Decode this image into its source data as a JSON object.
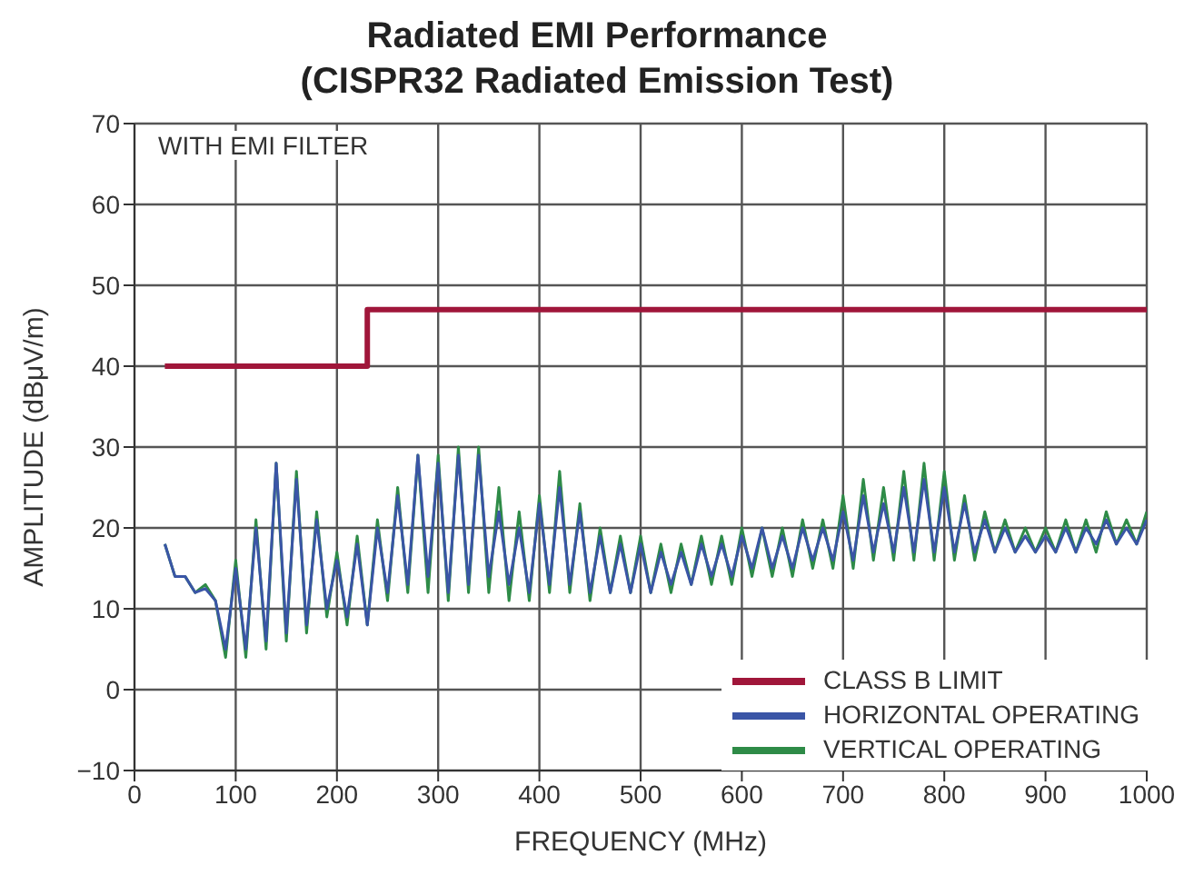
{
  "chart_data": {
    "type": "line",
    "title": "Radiated EMI Performance",
    "subtitle": "(CISPR32 Radiated Emission Test)",
    "xlabel": "FREQUENCY (MHz)",
    "ylabel": "AMPLITUDE (dBμV/m)",
    "annotations": [
      "WITH EMI FILTER"
    ],
    "xlim": [
      0,
      1000
    ],
    "xticks": [
      0,
      100,
      200,
      300,
      400,
      500,
      600,
      700,
      800,
      900,
      1000
    ],
    "ylim": [
      -10,
      70
    ],
    "yticks": [
      -10,
      0,
      10,
      20,
      30,
      40,
      50,
      60,
      70
    ],
    "grid": true,
    "legend": "bottom right",
    "marker": "none",
    "line_style": "solid",
    "series": [
      {
        "name": "CLASS B LIMIT",
        "type": "step",
        "color": "#a0163a",
        "x": [
          30,
          230,
          1000
        ],
        "values": [
          40,
          47,
          47
        ]
      },
      {
        "name": "HORIZONTAL OPERATING",
        "color": "#3a55a6",
        "x": [
          30,
          40,
          50,
          60,
          70,
          80,
          90,
          100,
          110,
          120,
          130,
          140,
          150,
          160,
          170,
          180,
          190,
          200,
          210,
          220,
          230,
          240,
          250,
          260,
          270,
          280,
          290,
          300,
          310,
          320,
          330,
          340,
          350,
          360,
          370,
          380,
          390,
          400,
          410,
          420,
          430,
          440,
          450,
          460,
          470,
          480,
          490,
          500,
          510,
          520,
          530,
          540,
          550,
          560,
          570,
          580,
          590,
          600,
          610,
          620,
          630,
          640,
          650,
          660,
          670,
          680,
          690,
          700,
          710,
          720,
          730,
          740,
          750,
          760,
          770,
          780,
          790,
          800,
          810,
          820,
          830,
          840,
          850,
          860,
          870,
          880,
          890,
          900,
          910,
          920,
          930,
          940,
          950,
          960,
          970,
          980,
          990,
          1000
        ],
        "values": [
          18,
          14,
          14,
          12,
          12.5,
          11,
          5,
          15,
          5,
          20,
          6,
          28,
          7,
          26,
          8,
          21,
          10,
          16,
          9,
          18,
          8,
          20,
          12,
          24,
          13,
          29,
          14,
          28,
          12,
          29,
          13,
          29,
          14,
          22,
          13,
          20,
          12,
          23,
          13,
          25,
          13,
          22,
          12,
          19,
          12,
          18,
          12,
          18,
          12,
          17,
          13,
          17,
          13,
          18,
          14,
          18,
          14,
          19,
          15,
          20,
          15,
          19,
          15,
          20,
          16,
          20,
          16,
          22,
          16,
          24,
          17,
          23,
          17,
          25,
          17,
          26,
          17,
          25,
          17,
          23,
          17,
          21,
          17,
          20,
          17,
          19,
          17,
          19,
          17,
          20,
          17,
          20,
          18,
          21,
          18,
          20,
          18,
          21
        ]
      },
      {
        "name": "VERTICAL OPERATING",
        "color": "#2e8b47",
        "x": [
          30,
          40,
          50,
          60,
          70,
          80,
          90,
          100,
          110,
          120,
          130,
          140,
          150,
          160,
          170,
          180,
          190,
          200,
          210,
          220,
          230,
          240,
          250,
          260,
          270,
          280,
          290,
          300,
          310,
          320,
          330,
          340,
          350,
          360,
          370,
          380,
          390,
          400,
          410,
          420,
          430,
          440,
          450,
          460,
          470,
          480,
          490,
          500,
          510,
          520,
          530,
          540,
          550,
          560,
          570,
          580,
          590,
          600,
          610,
          620,
          630,
          640,
          650,
          660,
          670,
          680,
          690,
          700,
          710,
          720,
          730,
          740,
          750,
          760,
          770,
          780,
          790,
          800,
          810,
          820,
          830,
          840,
          850,
          860,
          870,
          880,
          890,
          900,
          910,
          920,
          930,
          940,
          950,
          960,
          970,
          980,
          990,
          1000
        ],
        "values": [
          18,
          14,
          14,
          12,
          13,
          11,
          4,
          16,
          4,
          21,
          5,
          28,
          6,
          27,
          7,
          22,
          9,
          17,
          8,
          19,
          8,
          21,
          11,
          25,
          12,
          29,
          12,
          29,
          11,
          30,
          12,
          30,
          12,
          25,
          11,
          22,
          11,
          24,
          12,
          27,
          12,
          23,
          11,
          20,
          12,
          19,
          12,
          19,
          12,
          18,
          12,
          18,
          13,
          19,
          13,
          19,
          13,
          20,
          14,
          20,
          14,
          20,
          14,
          21,
          15,
          21,
          15,
          24,
          15,
          26,
          16,
          25,
          16,
          27,
          16,
          28,
          16,
          27,
          16,
          24,
          16,
          22,
          17,
          21,
          17,
          20,
          17,
          20,
          17,
          21,
          17,
          21,
          17,
          22,
          18,
          21,
          18,
          22
        ]
      }
    ]
  }
}
